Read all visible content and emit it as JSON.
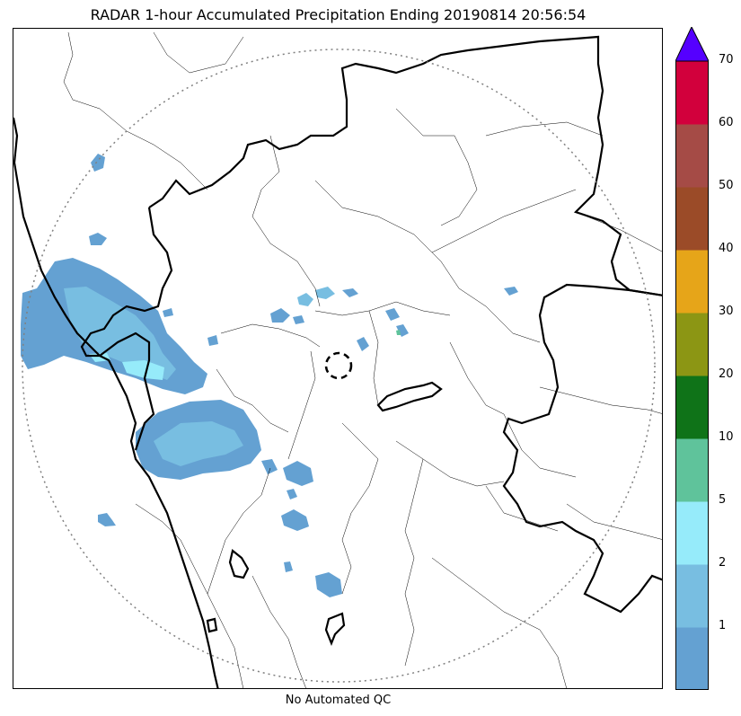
{
  "title": "RADAR 1-hour Accumulated Precipitation Ending 20190814 20:56:54",
  "footer": "No Automated QC",
  "colorbar": {
    "ticks": [
      "1",
      "2",
      "5",
      "10",
      "20",
      "30",
      "40",
      "50",
      "60",
      "70"
    ],
    "colors": [
      "#64a1d2",
      "#78bee1",
      "#96ebfa",
      "#5fc39b",
      "#0f7318",
      "#8c9614",
      "#e6a519",
      "#9b4b28",
      "#a54b46",
      "#d2003c"
    ],
    "extend_color": "#5500ff"
  },
  "map": {
    "range_ring_color": "#808080",
    "radar_marker": "radar-location"
  }
}
